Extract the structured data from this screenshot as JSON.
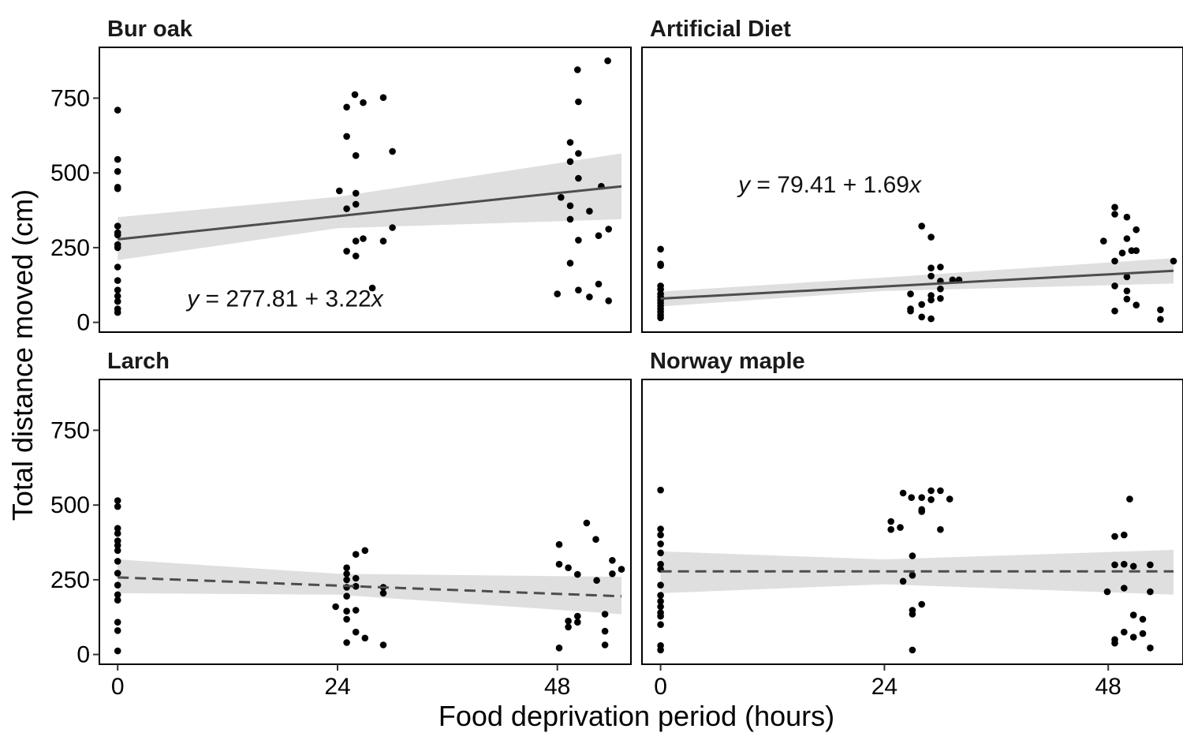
{
  "figure": {
    "xlabel": "Food deprivation period (hours)",
    "ylabel": "Total distance moved (cm)"
  },
  "colors": {
    "point": "#000000",
    "fit_line": "#4d4d4d",
    "ribbon": "#d9d9d9",
    "panel_border": "#000000"
  },
  "chart_data": [
    {
      "type": "scatter",
      "title": "Bur oak",
      "xlabel": "Food deprivation period (hours)",
      "ylabel": "Total distance moved (cm)",
      "x_ticks": [
        0,
        24,
        48
      ],
      "y_ticks": [
        0,
        250,
        500,
        750
      ],
      "xlim": [
        -2,
        55
      ],
      "ylim": [
        -30,
        920
      ],
      "grid": false,
      "equation": {
        "lead": "y",
        "rhs": "277.81 + 3.22",
        "var": "x"
      },
      "fit": {
        "intercept": 277.81,
        "slope": 3.22,
        "linetype": "solid",
        "ci": [
          [
            0,
            208,
            352
          ],
          [
            24,
            315,
            420
          ],
          [
            55,
            345,
            565
          ]
        ]
      },
      "points": [
        [
          0,
          710
        ],
        [
          0,
          545
        ],
        [
          0,
          505
        ],
        [
          0,
          452
        ],
        [
          0,
          447
        ],
        [
          0,
          322
        ],
        [
          0,
          300
        ],
        [
          0,
          292
        ],
        [
          0,
          260
        ],
        [
          0,
          250
        ],
        [
          0,
          185
        ],
        [
          0,
          140
        ],
        [
          0,
          108
        ],
        [
          0,
          88
        ],
        [
          0,
          70
        ],
        [
          0,
          45
        ],
        [
          0,
          33
        ],
        [
          24.2,
          440
        ],
        [
          25,
          720
        ],
        [
          25,
          622
        ],
        [
          25,
          380
        ],
        [
          25,
          238
        ],
        [
          25.9,
          762
        ],
        [
          26,
          558
        ],
        [
          26,
          432
        ],
        [
          26,
          395
        ],
        [
          26,
          272
        ],
        [
          26,
          222
        ],
        [
          26.8,
          735
        ],
        [
          26.8,
          280
        ],
        [
          27.8,
          115
        ],
        [
          29,
          752
        ],
        [
          29,
          272
        ],
        [
          30,
          572
        ],
        [
          30,
          317
        ],
        [
          48,
          95
        ],
        [
          48.4,
          418
        ],
        [
          49.4,
          602
        ],
        [
          49.4,
          538
        ],
        [
          49.4,
          390
        ],
        [
          49.4,
          345
        ],
        [
          49.4,
          198
        ],
        [
          50.3,
          565
        ],
        [
          50.3,
          482
        ],
        [
          50.3,
          275
        ],
        [
          50.3,
          108
        ],
        [
          51.5,
          372
        ],
        [
          51.5,
          85
        ],
        [
          52.5,
          290
        ],
        [
          52.5,
          128
        ],
        [
          52.8,
          455
        ],
        [
          53.6,
          312
        ],
        [
          53.6,
          72
        ],
        [
          50.2,
          845
        ],
        [
          50.3,
          738
        ],
        [
          53.5,
          875
        ]
      ]
    },
    {
      "type": "scatter",
      "title": "Artificial Diet",
      "xlabel": "Food deprivation period (hours)",
      "ylabel": "Total distance moved (cm)",
      "x_ticks": [
        0,
        24,
        48
      ],
      "y_ticks": [
        0,
        250,
        500,
        750
      ],
      "xlim": [
        -2,
        55
      ],
      "ylim": [
        -30,
        920
      ],
      "grid": false,
      "equation": {
        "lead": "y",
        "rhs": "79.41 + 1.69",
        "var": "x"
      },
      "fit": {
        "intercept": 79.41,
        "slope": 1.69,
        "linetype": "solid",
        "ci": [
          [
            0,
            53,
            103
          ],
          [
            24,
            105,
            150
          ],
          [
            55,
            130,
            215
          ]
        ]
      },
      "points": [
        [
          0,
          245
        ],
        [
          0,
          195
        ],
        [
          0,
          190
        ],
        [
          0,
          122
        ],
        [
          0,
          110
        ],
        [
          0,
          95
        ],
        [
          0,
          85
        ],
        [
          0,
          75
        ],
        [
          0,
          65
        ],
        [
          0,
          55
        ],
        [
          0,
          45
        ],
        [
          0,
          35
        ],
        [
          0,
          25
        ],
        [
          0,
          15
        ],
        [
          26.8,
          95
        ],
        [
          26.8,
          45
        ],
        [
          26.8,
          38
        ],
        [
          28,
          322
        ],
        [
          28,
          60
        ],
        [
          28,
          18
        ],
        [
          29,
          285
        ],
        [
          29,
          182
        ],
        [
          29,
          155
        ],
        [
          29,
          90
        ],
        [
          29,
          75
        ],
        [
          29,
          12
        ],
        [
          30,
          185
        ],
        [
          30,
          138
        ],
        [
          30,
          112
        ],
        [
          30,
          80
        ],
        [
          31.3,
          142
        ],
        [
          32,
          142
        ],
        [
          47.5,
          272
        ],
        [
          48.7,
          385
        ],
        [
          48.7,
          362
        ],
        [
          48.7,
          205
        ],
        [
          48.7,
          122
        ],
        [
          48.7,
          38
        ],
        [
          49.5,
          232
        ],
        [
          50,
          352
        ],
        [
          50,
          280
        ],
        [
          50,
          152
        ],
        [
          50,
          105
        ],
        [
          50,
          78
        ],
        [
          50.5,
          240
        ],
        [
          51,
          310
        ],
        [
          51,
          240
        ],
        [
          51,
          58
        ],
        [
          53.6,
          42
        ],
        [
          53.6,
          10
        ],
        [
          55,
          205
        ]
      ]
    },
    {
      "type": "scatter",
      "title": "Larch",
      "xlabel": "Food deprivation period (hours)",
      "ylabel": "Total distance moved (cm)",
      "x_ticks": [
        0,
        24,
        48
      ],
      "y_ticks": [
        0,
        250,
        500,
        750
      ],
      "xlim": [
        -2,
        55
      ],
      "ylim": [
        -30,
        920
      ],
      "grid": false,
      "equation": null,
      "fit": {
        "intercept": 258,
        "slope": -1.15,
        "linetype": "dashed",
        "ci": [
          [
            0,
            205,
            318
          ],
          [
            24,
            200,
            270
          ],
          [
            55,
            135,
            260
          ]
        ]
      },
      "points": [
        [
          0,
          515
        ],
        [
          0,
          495
        ],
        [
          0,
          422
        ],
        [
          0,
          405
        ],
        [
          0,
          380
        ],
        [
          0,
          365
        ],
        [
          0,
          348
        ],
        [
          0,
          312
        ],
        [
          0,
          272
        ],
        [
          0,
          232
        ],
        [
          0,
          200
        ],
        [
          0,
          182
        ],
        [
          0,
          108
        ],
        [
          0,
          80
        ],
        [
          0,
          12
        ],
        [
          23.8,
          160
        ],
        [
          25,
          290
        ],
        [
          25,
          270
        ],
        [
          25,
          250
        ],
        [
          25,
          225
        ],
        [
          25,
          195
        ],
        [
          25,
          145
        ],
        [
          25,
          118
        ],
        [
          25,
          40
        ],
        [
          26,
          335
        ],
        [
          26,
          255
        ],
        [
          26,
          228
        ],
        [
          26,
          148
        ],
        [
          26,
          75
        ],
        [
          27,
          348
        ],
        [
          27,
          55
        ],
        [
          29,
          225
        ],
        [
          29,
          205
        ],
        [
          29,
          32
        ],
        [
          48.2,
          368
        ],
        [
          48.2,
          302
        ],
        [
          48.2,
          22
        ],
        [
          49.2,
          290
        ],
        [
          49.2,
          112
        ],
        [
          49.2,
          92
        ],
        [
          50.2,
          268
        ],
        [
          50.2,
          128
        ],
        [
          50.2,
          108
        ],
        [
          51.2,
          440
        ],
        [
          52.2,
          385
        ],
        [
          52.3,
          248
        ],
        [
          53.2,
          135
        ],
        [
          53.2,
          78
        ],
        [
          53.2,
          32
        ],
        [
          54,
          315
        ],
        [
          54,
          270
        ],
        [
          55,
          285
        ]
      ]
    },
    {
      "type": "scatter",
      "title": "Norway maple",
      "xlabel": "Food deprivation period (hours)",
      "ylabel": "Total distance moved (cm)",
      "x_ticks": [
        0,
        24,
        48
      ],
      "y_ticks": [
        0,
        250,
        500,
        750
      ],
      "xlim": [
        -2,
        55
      ],
      "ylim": [
        -30,
        920
      ],
      "grid": false,
      "equation": null,
      "fit": {
        "intercept": 278,
        "slope": 0,
        "linetype": "dashed",
        "ci": [
          [
            0,
            205,
            345
          ],
          [
            24,
            235,
            318
          ],
          [
            55,
            200,
            350
          ]
        ]
      },
      "points": [
        [
          0,
          550
        ],
        [
          0,
          420
        ],
        [
          0,
          400
        ],
        [
          0,
          370
        ],
        [
          0,
          340
        ],
        [
          0,
          302
        ],
        [
          0,
          285
        ],
        [
          0,
          232
        ],
        [
          0,
          198
        ],
        [
          0,
          178
        ],
        [
          0,
          160
        ],
        [
          0,
          140
        ],
        [
          0,
          128
        ],
        [
          0,
          100
        ],
        [
          0,
          30
        ],
        [
          0,
          15
        ],
        [
          24.7,
          445
        ],
        [
          24.7,
          418
        ],
        [
          25.7,
          425
        ],
        [
          26,
          540
        ],
        [
          26,
          245
        ],
        [
          26.9,
          525
        ],
        [
          27,
          330
        ],
        [
          27,
          265
        ],
        [
          27,
          148
        ],
        [
          27,
          135
        ],
        [
          27,
          15
        ],
        [
          28,
          525
        ],
        [
          28,
          485
        ],
        [
          28,
          478
        ],
        [
          28,
          168
        ],
        [
          29,
          548
        ],
        [
          29,
          518
        ],
        [
          30,
          548
        ],
        [
          30,
          418
        ],
        [
          31,
          520
        ],
        [
          47.9,
          210
        ],
        [
          48.7,
          395
        ],
        [
          48.7,
          300
        ],
        [
          48.7,
          50
        ],
        [
          48.7,
          38
        ],
        [
          49.7,
          400
        ],
        [
          49.7,
          302
        ],
        [
          49.7,
          222
        ],
        [
          49.7,
          75
        ],
        [
          50.7,
          295
        ],
        [
          50.7,
          132
        ],
        [
          50.7,
          58
        ],
        [
          51.7,
          118
        ],
        [
          51.7,
          70
        ],
        [
          52.5,
          300
        ],
        [
          52.5,
          210
        ],
        [
          52.5,
          22
        ],
        [
          50.3,
          520
        ]
      ]
    }
  ]
}
